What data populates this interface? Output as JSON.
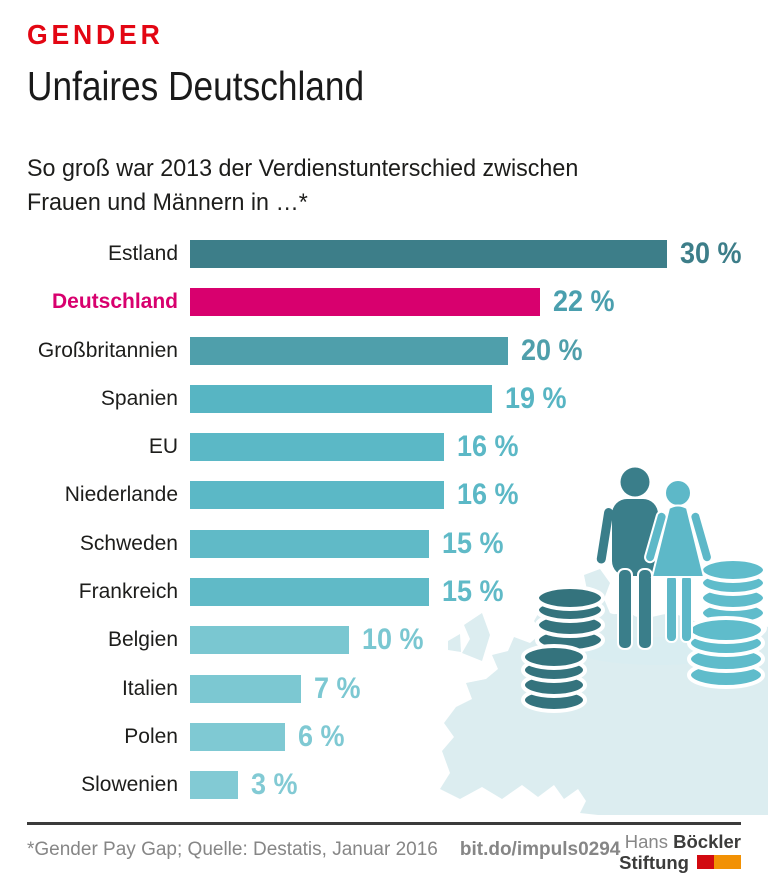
{
  "header": {
    "kicker": "GENDER",
    "title": "Unfaires Deutschland",
    "subtitle_line1": "So groß war 2013 der Verdienstunterschied zwischen",
    "subtitle_line2": "Frauen und Männern in …*"
  },
  "chart_data": {
    "type": "bar",
    "orientation": "horizontal",
    "unit": "%",
    "xlim": [
      0,
      30
    ],
    "grid": false,
    "legend": "none",
    "title": "Unfaires Deutschland",
    "subtitle": "So groß war 2013 der Verdienstunterschied zwischen Frauen und Männern in …*",
    "categories": [
      "Estland",
      "Deutschland",
      "Großbritannien",
      "Spanien",
      "EU",
      "Niederlande",
      "Schweden",
      "Frankreich",
      "Belgien",
      "Italien",
      "Polen",
      "Slowenien"
    ],
    "values": [
      30,
      22,
      20,
      19,
      16,
      16,
      15,
      15,
      10,
      7,
      6,
      3
    ],
    "highlight_category": "Deutschland",
    "bars": [
      {
        "label": "Estland",
        "value": 30,
        "display": "30 %",
        "bar_color": "#3d7e89",
        "value_color": "#3d7e89",
        "highlight": false
      },
      {
        "label": "Deutschland",
        "value": 22,
        "display": "22 %",
        "bar_color": "#d8006e",
        "value_color": "#4a9fae",
        "highlight": true
      },
      {
        "label": "Großbritannien",
        "value": 20,
        "display": "20 %",
        "bar_color": "#4f9fab",
        "value_color": "#4f9fab",
        "highlight": false
      },
      {
        "label": "Spanien",
        "value": 19,
        "display": "19 %",
        "bar_color": "#57b5c3",
        "value_color": "#57b5c3",
        "highlight": false
      },
      {
        "label": "EU",
        "value": 16,
        "display": "16 %",
        "bar_color": "#5bb8c6",
        "value_color": "#5bb8c6",
        "highlight": false
      },
      {
        "label": "Niederlande",
        "value": 16,
        "display": "16 %",
        "bar_color": "#5bb8c6",
        "value_color": "#5bb8c6",
        "highlight": false
      },
      {
        "label": "Schweden",
        "value": 15,
        "display": "15 %",
        "bar_color": "#60bac7",
        "value_color": "#60bac7",
        "highlight": false
      },
      {
        "label": "Frankreich",
        "value": 15,
        "display": "15 %",
        "bar_color": "#60bac7",
        "value_color": "#60bac7",
        "highlight": false
      },
      {
        "label": "Belgien",
        "value": 10,
        "display": "10 %",
        "bar_color": "#7ac7d1",
        "value_color": "#7ac7d1",
        "highlight": false
      },
      {
        "label": "Italien",
        "value": 7,
        "display": "7 %",
        "bar_color": "#7cc8d2",
        "value_color": "#7cc8d2",
        "highlight": false
      },
      {
        "label": "Polen",
        "value": 6,
        "display": "6 %",
        "bar_color": "#7fc9d3",
        "value_color": "#7fc9d3",
        "highlight": false
      },
      {
        "label": "Slowenien",
        "value": 3,
        "display": "3 %",
        "bar_color": "#82cad4",
        "value_color": "#82cad4",
        "highlight": false
      }
    ]
  },
  "illustration": {
    "description": "europe-map-with-man-woman-and-coin-stacks"
  },
  "footer": {
    "footnote": "*Gender Pay Gap; Quelle: Destatis, Januar 2016",
    "link": "bit.do/impuls0294",
    "logo": {
      "line1_regular": "Hans",
      "line1_bold": "Böckler",
      "line2_bold": "Stiftung"
    }
  },
  "colors": {
    "red": "#e30613",
    "pink": "#d8006e",
    "ink": "#1d1d1b",
    "gray": "#868686",
    "rule": "#3b3b3b",
    "map": "#dcedf0",
    "man": "#3a7e8a",
    "woman": "#5db8c8",
    "coin-dark": "#34737d",
    "coin-light": "#5fbccb",
    "shadow": "#d9edf1",
    "logo-red": "#d20a10",
    "logo-orange": "#f29104",
    "logo-dark": "#3c3c3b",
    "logo-gray": "#878787"
  }
}
